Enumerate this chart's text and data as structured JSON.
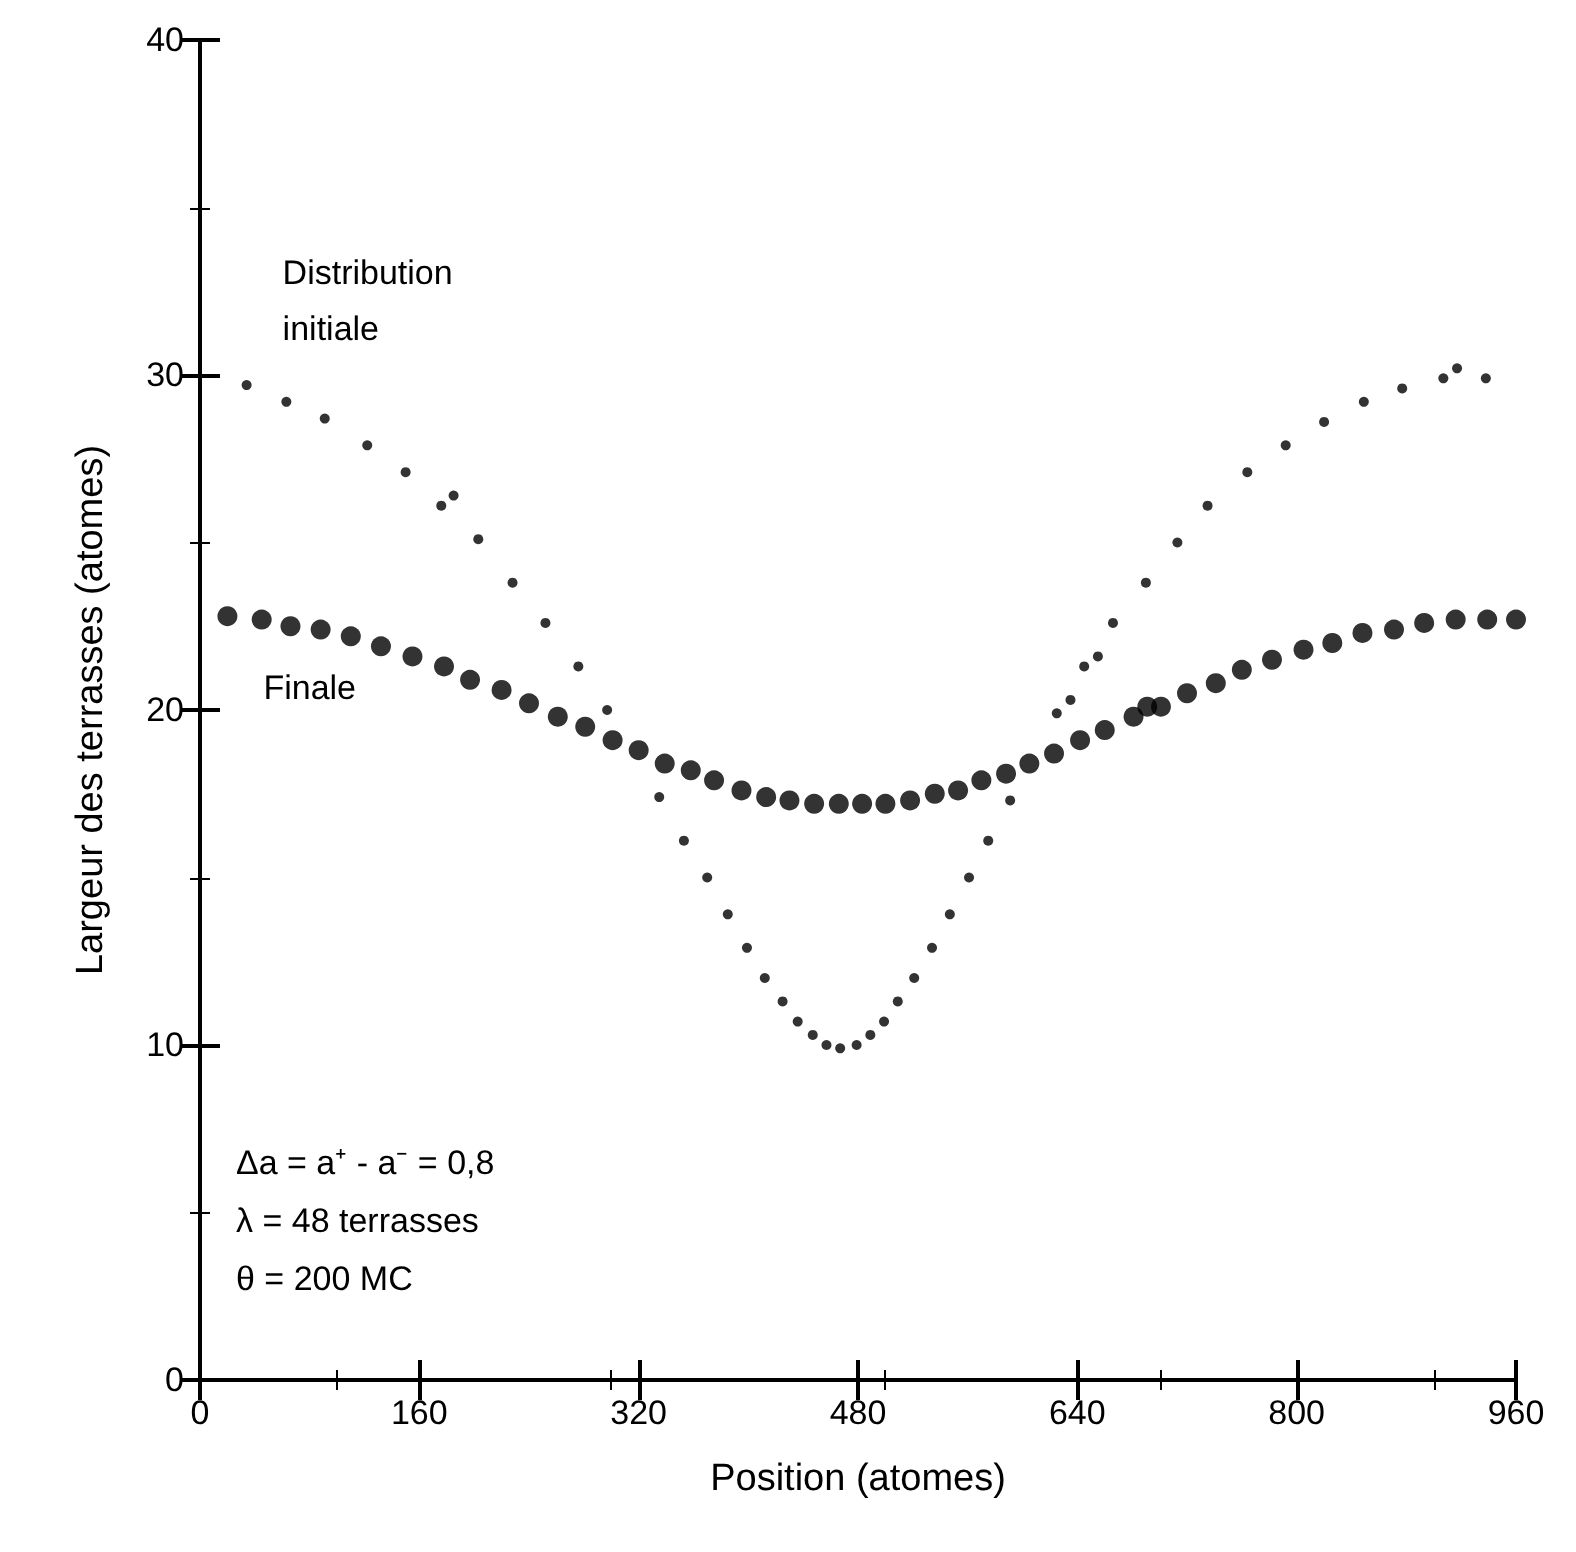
{
  "chart_data": {
    "type": "scatter",
    "xlabel": "Position (atomes)",
    "ylabel": "Largeur des terrasses (atomes)",
    "xlim": [
      0,
      960
    ],
    "xticks": [
      0,
      160,
      320,
      480,
      640,
      800,
      960
    ],
    "ylim": [
      0,
      40
    ],
    "yticks": [
      0,
      10,
      20,
      30,
      40
    ],
    "grid": false,
    "legend": false,
    "marker": "circle",
    "annotations": [
      "Δa = a⁺ - a⁻ = 0,8",
      "λ = 48 terrasses",
      "θ = 200 MC"
    ],
    "series": [
      {
        "name": "Distribution initiale",
        "color": "#000000",
        "x": [
          34,
          63,
          91,
          122,
          150,
          176,
          185,
          203,
          228,
          252,
          276,
          297,
          335,
          353,
          370,
          385,
          399,
          412,
          425,
          436,
          447,
          457,
          467,
          479,
          489,
          499,
          509,
          521,
          534,
          547,
          561,
          575,
          591,
          625,
          635,
          645,
          655,
          666,
          690,
          713,
          735,
          764,
          792,
          820,
          849,
          877,
          907,
          917,
          938
        ],
        "values": [
          29.7,
          29.2,
          28.7,
          27.9,
          27.1,
          26.1,
          26.4,
          25.1,
          23.8,
          22.6,
          21.3,
          20.0,
          17.4,
          16.1,
          15.0,
          13.9,
          12.9,
          12.0,
          11.3,
          10.7,
          10.3,
          10.0,
          9.9,
          10.0,
          10.3,
          10.7,
          11.3,
          12.0,
          12.9,
          13.9,
          15.0,
          16.1,
          17.3,
          19.9,
          20.3,
          21.3,
          21.6,
          22.6,
          23.8,
          25.0,
          26.1,
          27.1,
          27.9,
          28.6,
          29.2,
          29.6,
          29.9,
          30.2,
          29.9
        ]
      },
      {
        "name": "Finale",
        "color": "#000000",
        "x": [
          20,
          45,
          66,
          88,
          110,
          132,
          155,
          178,
          197,
          220,
          240,
          261,
          281,
          301,
          320,
          339,
          358,
          375,
          395,
          413,
          430,
          448,
          466,
          483,
          500,
          518,
          536,
          553,
          570,
          588,
          605,
          623,
          642,
          660,
          681,
          691,
          701,
          720,
          741,
          760,
          782,
          805,
          826,
          848,
          871,
          893,
          916,
          939,
          960
        ],
        "values": [
          22.8,
          22.7,
          22.5,
          22.4,
          22.2,
          21.9,
          21.6,
          21.3,
          20.9,
          20.6,
          20.2,
          19.8,
          19.5,
          19.1,
          18.8,
          18.4,
          18.2,
          17.9,
          17.6,
          17.4,
          17.3,
          17.2,
          17.2,
          17.2,
          17.2,
          17.3,
          17.5,
          17.6,
          17.9,
          18.1,
          18.4,
          18.7,
          19.1,
          19.4,
          19.8,
          20.1,
          20.1,
          20.5,
          20.8,
          21.2,
          21.5,
          21.8,
          22.0,
          22.3,
          22.4,
          22.6,
          22.7,
          22.7,
          22.7
        ]
      }
    ]
  }
}
